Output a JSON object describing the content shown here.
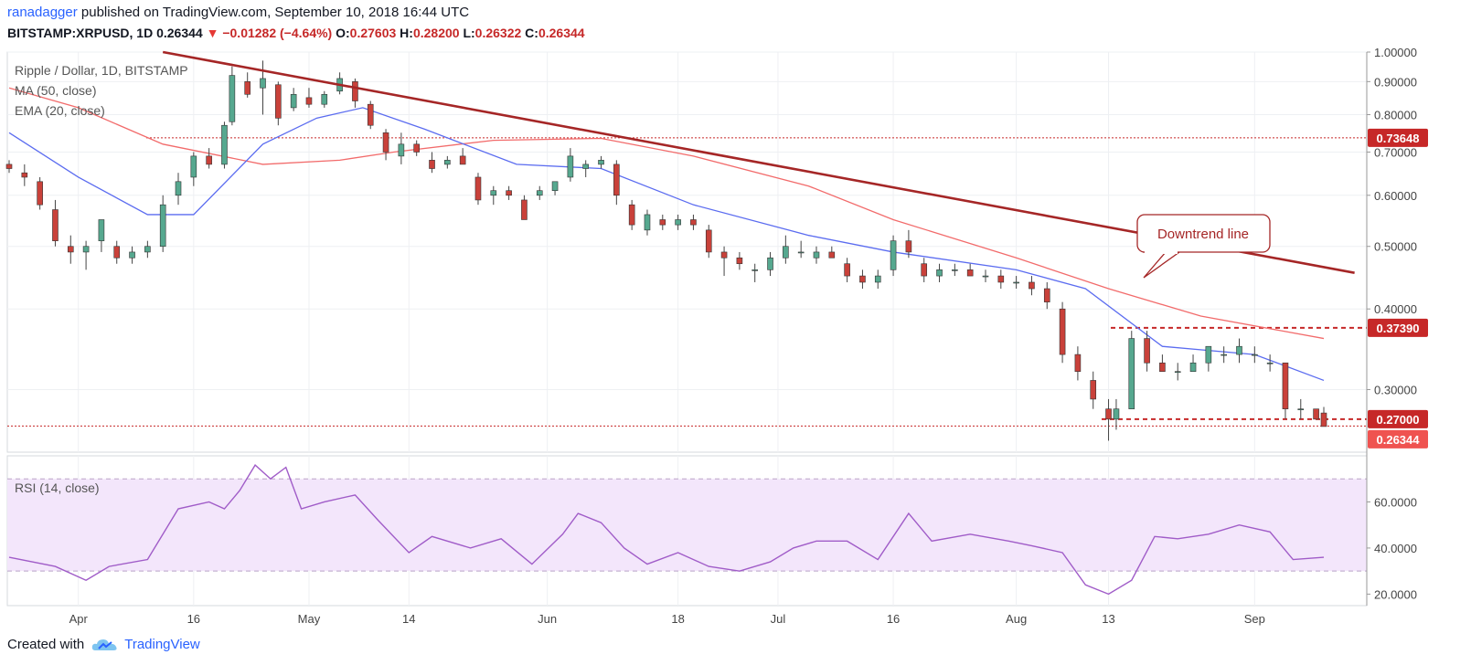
{
  "header": {
    "author": "ranadagger",
    "published_text": "published on TradingView.com, September 10, 2018 16:44 UTC",
    "symbol": "BITSTAMP:XRPUSD, 1D",
    "last": "0.26344",
    "change": "−0.01282 (−4.64%)",
    "open_label": "O:",
    "open": "0.27603",
    "high_label": "H:",
    "high": "0.28200",
    "low_label": "L:",
    "low": "0.26322",
    "close_label": "C:",
    "close": "0.26344"
  },
  "legend": {
    "title": "Ripple / Dollar, 1D, BITSTAMP",
    "ma": "MA (50, close)",
    "ema": "EMA (20, close)",
    "rsi": "RSI (14, close)"
  },
  "footer": {
    "created_with": "Created with",
    "brand": "TradingView"
  },
  "colors": {
    "up": "#56a88f",
    "down": "#c9413a",
    "ma": "#f26b6b",
    "ema": "#5b6cf0",
    "trend": "#a52626",
    "level": "#c62828",
    "rsi_line": "#a05cc8",
    "rsi_band": "#f3e6fb",
    "grid": "#eef0f3"
  },
  "chart_data": [
    {
      "type": "candlestick",
      "title": "Ripple / Dollar, 1D, BITSTAMP",
      "ylim": [
        0.24,
        1.0
      ],
      "y_scale": "log",
      "y_ticks": [
        "1.00000",
        "0.90000",
        "0.80000",
        "0.70000",
        "0.60000",
        "0.50000",
        "0.40000",
        "0.30000"
      ],
      "x_ticks": [
        "Apr",
        "16",
        "May",
        "14",
        "Jun",
        "18",
        "Jul",
        "16",
        "Aug",
        "13",
        "Sep"
      ],
      "date_range": [
        "2018-03-23",
        "2018-09-10"
      ],
      "series": [
        {
          "name": "MA (50, close)",
          "points": [
            [
              "2018-03-23",
              0.88
            ],
            [
              "2018-04-01",
              0.82
            ],
            [
              "2018-04-12",
              0.72
            ],
            [
              "2018-04-25",
              0.67
            ],
            [
              "2018-05-05",
              0.68
            ],
            [
              "2018-05-12",
              0.7
            ],
            [
              "2018-05-25",
              0.73
            ],
            [
              "2018-06-08",
              0.735
            ],
            [
              "2018-06-20",
              0.69
            ],
            [
              "2018-07-05",
              0.62
            ],
            [
              "2018-07-16",
              0.55
            ],
            [
              "2018-08-01",
              0.48
            ],
            [
              "2018-08-13",
              0.43
            ],
            [
              "2018-08-25",
              0.39
            ],
            [
              "2018-09-10",
              0.36
            ]
          ]
        },
        {
          "name": "EMA (20, close)",
          "points": [
            [
              "2018-03-23",
              0.75
            ],
            [
              "2018-04-01",
              0.64
            ],
            [
              "2018-04-10",
              0.56
            ],
            [
              "2018-04-16",
              0.56
            ],
            [
              "2018-04-25",
              0.72
            ],
            [
              "2018-05-02",
              0.79
            ],
            [
              "2018-05-08",
              0.82
            ],
            [
              "2018-05-16",
              0.76
            ],
            [
              "2018-05-28",
              0.67
            ],
            [
              "2018-06-08",
              0.66
            ],
            [
              "2018-06-20",
              0.58
            ],
            [
              "2018-07-05",
              0.52
            ],
            [
              "2018-07-16",
              0.49
            ],
            [
              "2018-08-01",
              0.46
            ],
            [
              "2018-08-10",
              0.43
            ],
            [
              "2018-08-20",
              0.35
            ],
            [
              "2018-09-01",
              0.34
            ],
            [
              "2018-09-10",
              0.31
            ]
          ]
        }
      ],
      "candles": [
        [
          "2018-03-23",
          0.67,
          0.68,
          0.65,
          0.66
        ],
        [
          "2018-03-25",
          0.65,
          0.67,
          0.62,
          0.64
        ],
        [
          "2018-03-27",
          0.63,
          0.64,
          0.57,
          0.58
        ],
        [
          "2018-03-29",
          0.57,
          0.59,
          0.5,
          0.51
        ],
        [
          "2018-03-31",
          0.5,
          0.52,
          0.47,
          0.49
        ],
        [
          "2018-04-02",
          0.49,
          0.51,
          0.46,
          0.5
        ],
        [
          "2018-04-04",
          0.51,
          0.55,
          0.49,
          0.55
        ],
        [
          "2018-04-06",
          0.5,
          0.51,
          0.47,
          0.48
        ],
        [
          "2018-04-08",
          0.48,
          0.5,
          0.47,
          0.49
        ],
        [
          "2018-04-10",
          0.49,
          0.51,
          0.48,
          0.5
        ],
        [
          "2018-04-12",
          0.5,
          0.6,
          0.49,
          0.58
        ],
        [
          "2018-04-14",
          0.6,
          0.65,
          0.58,
          0.63
        ],
        [
          "2018-04-16",
          0.64,
          0.7,
          0.62,
          0.69
        ],
        [
          "2018-04-18",
          0.69,
          0.71,
          0.66,
          0.67
        ],
        [
          "2018-04-20",
          0.67,
          0.78,
          0.66,
          0.77
        ],
        [
          "2018-04-21",
          0.78,
          0.95,
          0.77,
          0.92
        ],
        [
          "2018-04-23",
          0.9,
          0.93,
          0.85,
          0.86
        ],
        [
          "2018-04-25",
          0.88,
          0.97,
          0.8,
          0.91
        ],
        [
          "2018-04-27",
          0.89,
          0.9,
          0.77,
          0.79
        ],
        [
          "2018-04-29",
          0.82,
          0.88,
          0.81,
          0.86
        ],
        [
          "2018-05-01",
          0.85,
          0.88,
          0.82,
          0.83
        ],
        [
          "2018-05-03",
          0.83,
          0.87,
          0.82,
          0.86
        ],
        [
          "2018-05-05",
          0.87,
          0.93,
          0.86,
          0.91
        ],
        [
          "2018-05-07",
          0.9,
          0.91,
          0.82,
          0.84
        ],
        [
          "2018-05-09",
          0.83,
          0.84,
          0.76,
          0.77
        ],
        [
          "2018-05-11",
          0.75,
          0.76,
          0.68,
          0.7
        ],
        [
          "2018-05-13",
          0.69,
          0.75,
          0.67,
          0.72
        ],
        [
          "2018-05-15",
          0.72,
          0.73,
          0.69,
          0.7
        ],
        [
          "2018-05-17",
          0.68,
          0.7,
          0.65,
          0.66
        ],
        [
          "2018-05-19",
          0.67,
          0.69,
          0.66,
          0.68
        ],
        [
          "2018-05-21",
          0.69,
          0.71,
          0.67,
          0.67
        ],
        [
          "2018-05-23",
          0.64,
          0.65,
          0.58,
          0.59
        ],
        [
          "2018-05-25",
          0.6,
          0.62,
          0.58,
          0.61
        ],
        [
          "2018-05-27",
          0.61,
          0.62,
          0.59,
          0.6
        ],
        [
          "2018-05-29",
          0.59,
          0.6,
          0.55,
          0.55
        ],
        [
          "2018-05-31",
          0.6,
          0.62,
          0.59,
          0.61
        ],
        [
          "2018-06-02",
          0.61,
          0.63,
          0.6,
          0.63
        ],
        [
          "2018-06-04",
          0.64,
          0.71,
          0.63,
          0.69
        ],
        [
          "2018-06-06",
          0.66,
          0.68,
          0.64,
          0.67
        ],
        [
          "2018-06-08",
          0.67,
          0.69,
          0.66,
          0.68
        ],
        [
          "2018-06-10",
          0.67,
          0.68,
          0.58,
          0.6
        ],
        [
          "2018-06-12",
          0.58,
          0.59,
          0.53,
          0.54
        ],
        [
          "2018-06-14",
          0.53,
          0.57,
          0.52,
          0.56
        ],
        [
          "2018-06-16",
          0.55,
          0.56,
          0.53,
          0.54
        ],
        [
          "2018-06-18",
          0.54,
          0.56,
          0.53,
          0.55
        ],
        [
          "2018-06-20",
          0.55,
          0.56,
          0.53,
          0.54
        ],
        [
          "2018-06-22",
          0.53,
          0.54,
          0.48,
          0.49
        ],
        [
          "2018-06-24",
          0.49,
          0.5,
          0.45,
          0.48
        ],
        [
          "2018-06-26",
          0.48,
          0.49,
          0.46,
          0.47
        ],
        [
          "2018-06-28",
          0.46,
          0.47,
          0.44,
          0.46
        ],
        [
          "2018-06-30",
          0.46,
          0.49,
          0.45,
          0.48
        ],
        [
          "2018-07-02",
          0.48,
          0.52,
          0.47,
          0.5
        ],
        [
          "2018-07-04",
          0.49,
          0.51,
          0.48,
          0.49
        ],
        [
          "2018-07-06",
          0.48,
          0.5,
          0.47,
          0.49
        ],
        [
          "2018-07-08",
          0.49,
          0.5,
          0.48,
          0.48
        ],
        [
          "2018-07-10",
          0.47,
          0.48,
          0.44,
          0.45
        ],
        [
          "2018-07-12",
          0.45,
          0.46,
          0.43,
          0.44
        ],
        [
          "2018-07-14",
          0.44,
          0.46,
          0.43,
          0.45
        ],
        [
          "2018-07-16",
          0.46,
          0.52,
          0.45,
          0.51
        ],
        [
          "2018-07-18",
          0.51,
          0.53,
          0.48,
          0.49
        ],
        [
          "2018-07-20",
          0.47,
          0.48,
          0.44,
          0.45
        ],
        [
          "2018-07-22",
          0.45,
          0.47,
          0.44,
          0.46
        ],
        [
          "2018-07-24",
          0.46,
          0.47,
          0.45,
          0.46
        ],
        [
          "2018-07-26",
          0.46,
          0.47,
          0.45,
          0.45
        ],
        [
          "2018-07-28",
          0.45,
          0.46,
          0.44,
          0.45
        ],
        [
          "2018-07-30",
          0.45,
          0.46,
          0.43,
          0.44
        ],
        [
          "2018-08-01",
          0.44,
          0.45,
          0.43,
          0.44
        ],
        [
          "2018-08-03",
          0.44,
          0.45,
          0.42,
          0.43
        ],
        [
          "2018-08-05",
          0.43,
          0.44,
          0.4,
          0.41
        ],
        [
          "2018-08-07",
          0.4,
          0.41,
          0.33,
          0.34
        ],
        [
          "2018-08-09",
          0.34,
          0.35,
          0.31,
          0.32
        ],
        [
          "2018-08-11",
          0.31,
          0.32,
          0.28,
          0.29
        ],
        [
          "2018-08-13",
          0.28,
          0.29,
          0.25,
          0.27
        ],
        [
          "2018-08-14",
          0.27,
          0.29,
          0.26,
          0.28
        ],
        [
          "2018-08-16",
          0.28,
          0.37,
          0.28,
          0.36
        ],
        [
          "2018-08-18",
          0.36,
          0.37,
          0.32,
          0.33
        ],
        [
          "2018-08-20",
          0.33,
          0.34,
          0.32,
          0.32
        ],
        [
          "2018-08-22",
          0.32,
          0.33,
          0.31,
          0.32
        ],
        [
          "2018-08-24",
          0.32,
          0.34,
          0.32,
          0.33
        ],
        [
          "2018-08-26",
          0.33,
          0.35,
          0.32,
          0.35
        ],
        [
          "2018-08-28",
          0.34,
          0.35,
          0.33,
          0.34
        ],
        [
          "2018-08-30",
          0.34,
          0.36,
          0.33,
          0.35
        ],
        [
          "2018-09-01",
          0.34,
          0.35,
          0.33,
          0.34
        ],
        [
          "2018-09-03",
          0.33,
          0.34,
          0.32,
          0.33
        ],
        [
          "2018-09-05",
          0.33,
          0.33,
          0.27,
          0.28
        ],
        [
          "2018-09-07",
          0.28,
          0.29,
          0.27,
          0.28
        ],
        [
          "2018-09-09",
          0.28,
          0.28,
          0.27,
          0.27
        ],
        [
          "2018-09-10",
          0.276,
          0.282,
          0.263,
          0.263
        ]
      ],
      "levels": [
        {
          "value": 0.73648,
          "label": "0.73648"
        },
        {
          "value": 0.3739,
          "label": "0.37390"
        },
        {
          "value": 0.27,
          "label": "0.27000"
        },
        {
          "value": 0.26344,
          "label": "0.26344"
        }
      ],
      "trend_line": {
        "from": [
          "2018-04-12",
          1.0
        ],
        "to": [
          "2018-09-14",
          0.455
        ]
      },
      "annotation": "Downtrend line"
    },
    {
      "type": "line",
      "title": "RSI (14, close)",
      "ylim": [
        15,
        80
      ],
      "y_ticks": [
        "60.0000",
        "40.0000",
        "20.0000"
      ],
      "bands": [
        30,
        70
      ],
      "points": [
        [
          "2018-03-23",
          36
        ],
        [
          "2018-03-29",
          32
        ],
        [
          "2018-04-02",
          26
        ],
        [
          "2018-04-05",
          32
        ],
        [
          "2018-04-10",
          35
        ],
        [
          "2018-04-14",
          57
        ],
        [
          "2018-04-18",
          60
        ],
        [
          "2018-04-20",
          57
        ],
        [
          "2018-04-22",
          65
        ],
        [
          "2018-04-24",
          76
        ],
        [
          "2018-04-26",
          70
        ],
        [
          "2018-04-28",
          75
        ],
        [
          "2018-04-30",
          57
        ],
        [
          "2018-05-03",
          60
        ],
        [
          "2018-05-07",
          63
        ],
        [
          "2018-05-10",
          52
        ],
        [
          "2018-05-14",
          38
        ],
        [
          "2018-05-17",
          45
        ],
        [
          "2018-05-22",
          40
        ],
        [
          "2018-05-26",
          44
        ],
        [
          "2018-05-30",
          33
        ],
        [
          "2018-06-03",
          46
        ],
        [
          "2018-06-05",
          55
        ],
        [
          "2018-06-08",
          51
        ],
        [
          "2018-06-11",
          40
        ],
        [
          "2018-06-14",
          33
        ],
        [
          "2018-06-18",
          38
        ],
        [
          "2018-06-22",
          32
        ],
        [
          "2018-06-26",
          30
        ],
        [
          "2018-06-30",
          34
        ],
        [
          "2018-07-03",
          40
        ],
        [
          "2018-07-06",
          43
        ],
        [
          "2018-07-10",
          43
        ],
        [
          "2018-07-14",
          35
        ],
        [
          "2018-07-18",
          55
        ],
        [
          "2018-07-21",
          43
        ],
        [
          "2018-07-26",
          46
        ],
        [
          "2018-07-31",
          43
        ],
        [
          "2018-08-03",
          41
        ],
        [
          "2018-08-07",
          38
        ],
        [
          "2018-08-10",
          24
        ],
        [
          "2018-08-13",
          20
        ],
        [
          "2018-08-16",
          26
        ],
        [
          "2018-08-19",
          45
        ],
        [
          "2018-08-22",
          44
        ],
        [
          "2018-08-26",
          46
        ],
        [
          "2018-08-30",
          50
        ],
        [
          "2018-09-03",
          47
        ],
        [
          "2018-09-06",
          35
        ],
        [
          "2018-09-10",
          36
        ]
      ]
    }
  ]
}
